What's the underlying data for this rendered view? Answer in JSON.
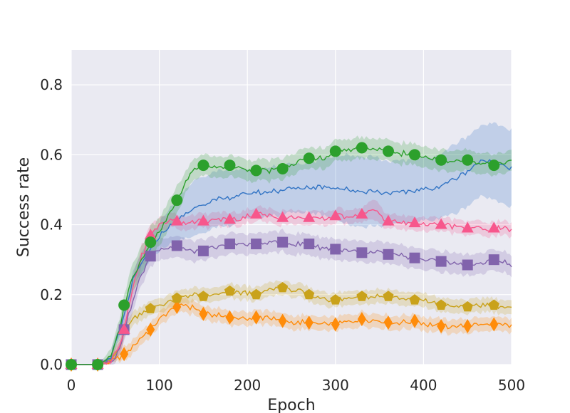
{
  "chart_data": {
    "type": "line",
    "title": "",
    "xlabel": "Epoch",
    "ylabel": "Success rate",
    "xlim": [
      0,
      500
    ],
    "ylim": [
      0,
      0.9
    ],
    "xticks": [
      0,
      100,
      200,
      300,
      400,
      500
    ],
    "xtick_labels": [
      "0",
      "100",
      "200",
      "300",
      "400",
      "500"
    ],
    "yticks": [
      0,
      0.2,
      0.4,
      0.6,
      0.8
    ],
    "ytick_labels": [
      "0.0",
      "0.2",
      "0.4",
      "0.6",
      "0.8"
    ],
    "grid": true,
    "background": "#eaeaf2",
    "x": [
      0,
      15,
      30,
      45,
      55,
      60,
      70,
      80,
      90,
      100,
      110,
      120,
      130,
      140,
      150,
      165,
      180,
      195,
      210,
      225,
      240,
      255,
      270,
      285,
      300,
      315,
      330,
      345,
      360,
      375,
      390,
      405,
      420,
      435,
      450,
      465,
      480,
      500
    ],
    "series": [
      {
        "name": "green-circle",
        "color": "#2ca02c",
        "marker": "circle",
        "values": [
          0.0,
          0.0,
          0.0,
          0.02,
          0.1,
          0.17,
          0.25,
          0.3,
          0.35,
          0.38,
          0.42,
          0.47,
          0.52,
          0.56,
          0.57,
          0.565,
          0.57,
          0.56,
          0.555,
          0.555,
          0.56,
          0.575,
          0.59,
          0.59,
          0.61,
          0.615,
          0.62,
          0.62,
          0.61,
          0.605,
          0.6,
          0.59,
          0.585,
          0.58,
          0.585,
          0.575,
          0.57,
          0.59
        ],
        "band": [
          0.0,
          0.0,
          0.0,
          0.02,
          0.03,
          0.03,
          0.04,
          0.04,
          0.04,
          0.04,
          0.04,
          0.04,
          0.03,
          0.03,
          0.03,
          0.03,
          0.03,
          0.03,
          0.03,
          0.03,
          0.03,
          0.03,
          0.03,
          0.03,
          0.03,
          0.03,
          0.03,
          0.03,
          0.03,
          0.03,
          0.03,
          0.03,
          0.03,
          0.03,
          0.03,
          0.03,
          0.03,
          0.03
        ],
        "markers_x": [
          0,
          30,
          60,
          90,
          120,
          150,
          180,
          210,
          240,
          270,
          300,
          330,
          360,
          390,
          420,
          450,
          480
        ]
      },
      {
        "name": "blue",
        "color": "#3274c4",
        "marker": "none",
        "values": [
          0.0,
          0.0,
          0.0,
          0.02,
          0.1,
          0.14,
          0.24,
          0.29,
          0.33,
          0.37,
          0.39,
          0.41,
          0.43,
          0.45,
          0.46,
          0.47,
          0.48,
          0.485,
          0.49,
          0.495,
          0.5,
          0.505,
          0.505,
          0.51,
          0.505,
          0.5,
          0.495,
          0.495,
          0.49,
          0.49,
          0.5,
          0.5,
          0.51,
          0.53,
          0.555,
          0.58,
          0.585,
          0.56
        ],
        "band": [
          0.0,
          0.0,
          0.0,
          0.01,
          0.02,
          0.02,
          0.02,
          0.03,
          0.03,
          0.04,
          0.05,
          0.06,
          0.07,
          0.08,
          0.08,
          0.08,
          0.08,
          0.07,
          0.07,
          0.07,
          0.07,
          0.07,
          0.07,
          0.08,
          0.09,
          0.1,
          0.1,
          0.1,
          0.09,
          0.09,
          0.09,
          0.09,
          0.09,
          0.1,
          0.1,
          0.1,
          0.11,
          0.11
        ],
        "markers_x": []
      },
      {
        "name": "pink-triangle",
        "color": "#f7578c",
        "marker": "triangle",
        "values": [
          0.0,
          0.0,
          0.0,
          0.01,
          0.05,
          0.1,
          0.22,
          0.31,
          0.37,
          0.4,
          0.41,
          0.41,
          0.405,
          0.41,
          0.41,
          0.415,
          0.415,
          0.42,
          0.43,
          0.425,
          0.42,
          0.42,
          0.42,
          0.415,
          0.425,
          0.425,
          0.43,
          0.44,
          0.41,
          0.405,
          0.405,
          0.4,
          0.4,
          0.395,
          0.39,
          0.39,
          0.39,
          0.385
        ],
        "band": [
          0.0,
          0.0,
          0.0,
          0.01,
          0.02,
          0.03,
          0.03,
          0.03,
          0.03,
          0.02,
          0.02,
          0.02,
          0.02,
          0.02,
          0.02,
          0.02,
          0.02,
          0.02,
          0.02,
          0.02,
          0.02,
          0.02,
          0.02,
          0.02,
          0.02,
          0.02,
          0.02,
          0.03,
          0.02,
          0.02,
          0.02,
          0.02,
          0.02,
          0.02,
          0.02,
          0.02,
          0.02,
          0.02
        ],
        "markers_x": [
          0,
          30,
          60,
          90,
          120,
          150,
          180,
          210,
          240,
          270,
          300,
          330,
          360,
          390,
          420,
          450,
          480
        ]
      },
      {
        "name": "purple-square",
        "color": "#8163ac",
        "marker": "square",
        "values": [
          0.0,
          0.0,
          0.0,
          0.01,
          0.04,
          0.1,
          0.18,
          0.26,
          0.31,
          0.33,
          0.335,
          0.34,
          0.33,
          0.325,
          0.325,
          0.335,
          0.345,
          0.345,
          0.345,
          0.35,
          0.35,
          0.345,
          0.345,
          0.335,
          0.33,
          0.325,
          0.32,
          0.32,
          0.315,
          0.31,
          0.305,
          0.3,
          0.295,
          0.29,
          0.285,
          0.29,
          0.3,
          0.285
        ],
        "band": [
          0.0,
          0.0,
          0.0,
          0.01,
          0.02,
          0.03,
          0.03,
          0.03,
          0.03,
          0.03,
          0.03,
          0.03,
          0.03,
          0.03,
          0.03,
          0.03,
          0.03,
          0.03,
          0.03,
          0.03,
          0.03,
          0.03,
          0.03,
          0.03,
          0.03,
          0.03,
          0.03,
          0.03,
          0.03,
          0.03,
          0.03,
          0.03,
          0.03,
          0.03,
          0.03,
          0.03,
          0.03,
          0.03
        ],
        "markers_x": [
          0,
          30,
          60,
          90,
          120,
          150,
          180,
          210,
          240,
          270,
          300,
          330,
          360,
          390,
          420,
          450,
          480
        ]
      },
      {
        "name": "gold-pentagon",
        "color": "#c9a21b",
        "marker": "pentagon",
        "values": [
          0.0,
          0.0,
          0.0,
          0.01,
          0.05,
          0.1,
          0.13,
          0.15,
          0.16,
          0.17,
          0.18,
          0.19,
          0.195,
          0.2,
          0.195,
          0.2,
          0.21,
          0.205,
          0.2,
          0.215,
          0.22,
          0.21,
          0.2,
          0.19,
          0.185,
          0.19,
          0.195,
          0.195,
          0.195,
          0.19,
          0.185,
          0.18,
          0.17,
          0.165,
          0.165,
          0.17,
          0.17,
          0.16
        ],
        "band": [
          0.0,
          0.0,
          0.0,
          0.01,
          0.02,
          0.02,
          0.02,
          0.02,
          0.02,
          0.02,
          0.02,
          0.02,
          0.02,
          0.02,
          0.02,
          0.02,
          0.02,
          0.02,
          0.02,
          0.02,
          0.02,
          0.02,
          0.02,
          0.02,
          0.02,
          0.02,
          0.02,
          0.02,
          0.02,
          0.02,
          0.02,
          0.02,
          0.02,
          0.02,
          0.02,
          0.02,
          0.02,
          0.02
        ],
        "markers_x": [
          0,
          30,
          60,
          90,
          120,
          150,
          180,
          210,
          240,
          270,
          300,
          330,
          360,
          390,
          420,
          450,
          480
        ]
      },
      {
        "name": "orange-diamond",
        "color": "#ff8c0a",
        "marker": "diamond",
        "values": [
          0.0,
          0.0,
          0.0,
          0.01,
          0.02,
          0.03,
          0.05,
          0.08,
          0.1,
          0.13,
          0.15,
          0.165,
          0.17,
          0.16,
          0.145,
          0.14,
          0.135,
          0.13,
          0.135,
          0.135,
          0.125,
          0.12,
          0.12,
          0.115,
          0.115,
          0.12,
          0.13,
          0.125,
          0.12,
          0.12,
          0.125,
          0.115,
          0.11,
          0.11,
          0.11,
          0.115,
          0.115,
          0.11
        ],
        "band": [
          0.0,
          0.0,
          0.0,
          0.01,
          0.01,
          0.02,
          0.02,
          0.02,
          0.02,
          0.02,
          0.02,
          0.02,
          0.02,
          0.02,
          0.02,
          0.02,
          0.02,
          0.02,
          0.02,
          0.02,
          0.02,
          0.02,
          0.02,
          0.02,
          0.02,
          0.02,
          0.02,
          0.02,
          0.02,
          0.02,
          0.02,
          0.02,
          0.02,
          0.02,
          0.02,
          0.02,
          0.02,
          0.02
        ],
        "markers_x": [
          0,
          30,
          60,
          90,
          120,
          150,
          180,
          210,
          240,
          270,
          300,
          330,
          360,
          390,
          420,
          450,
          480
        ]
      }
    ]
  }
}
